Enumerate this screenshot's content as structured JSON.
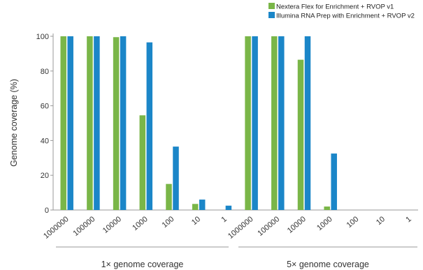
{
  "chart_data": {
    "type": "bar",
    "title": "",
    "ylabel": "Genome coverage (%)",
    "ylim": [
      0,
      100
    ],
    "yticks": [
      0,
      20,
      40,
      60,
      80,
      100
    ],
    "grid": false,
    "legend_position": "top-right",
    "groups": [
      {
        "label": "1× genome coverage",
        "categories": [
          "1000000",
          "100000",
          "10000",
          "1000",
          "100",
          "10",
          "1"
        ]
      },
      {
        "label": "5× genome coverage",
        "categories": [
          "1000000",
          "100000",
          "10000",
          "1000",
          "100",
          "10",
          "1"
        ]
      }
    ],
    "series": [
      {
        "name": "Nextera Flex for Enrichment + RVOP v1",
        "color": "#7ab648",
        "values": [
          100,
          100,
          99.5,
          54.5,
          15,
          3.5,
          0,
          100,
          100,
          86.5,
          2,
          0,
          0,
          0
        ]
      },
      {
        "name": "Illumina RNA Prep with Enrichment + RVOP v2",
        "color": "#1b86c8",
        "values": [
          100,
          100,
          100,
          96.5,
          36.5,
          6,
          2.5,
          100,
          100,
          100,
          32.5,
          0,
          0,
          0
        ]
      }
    ]
  }
}
